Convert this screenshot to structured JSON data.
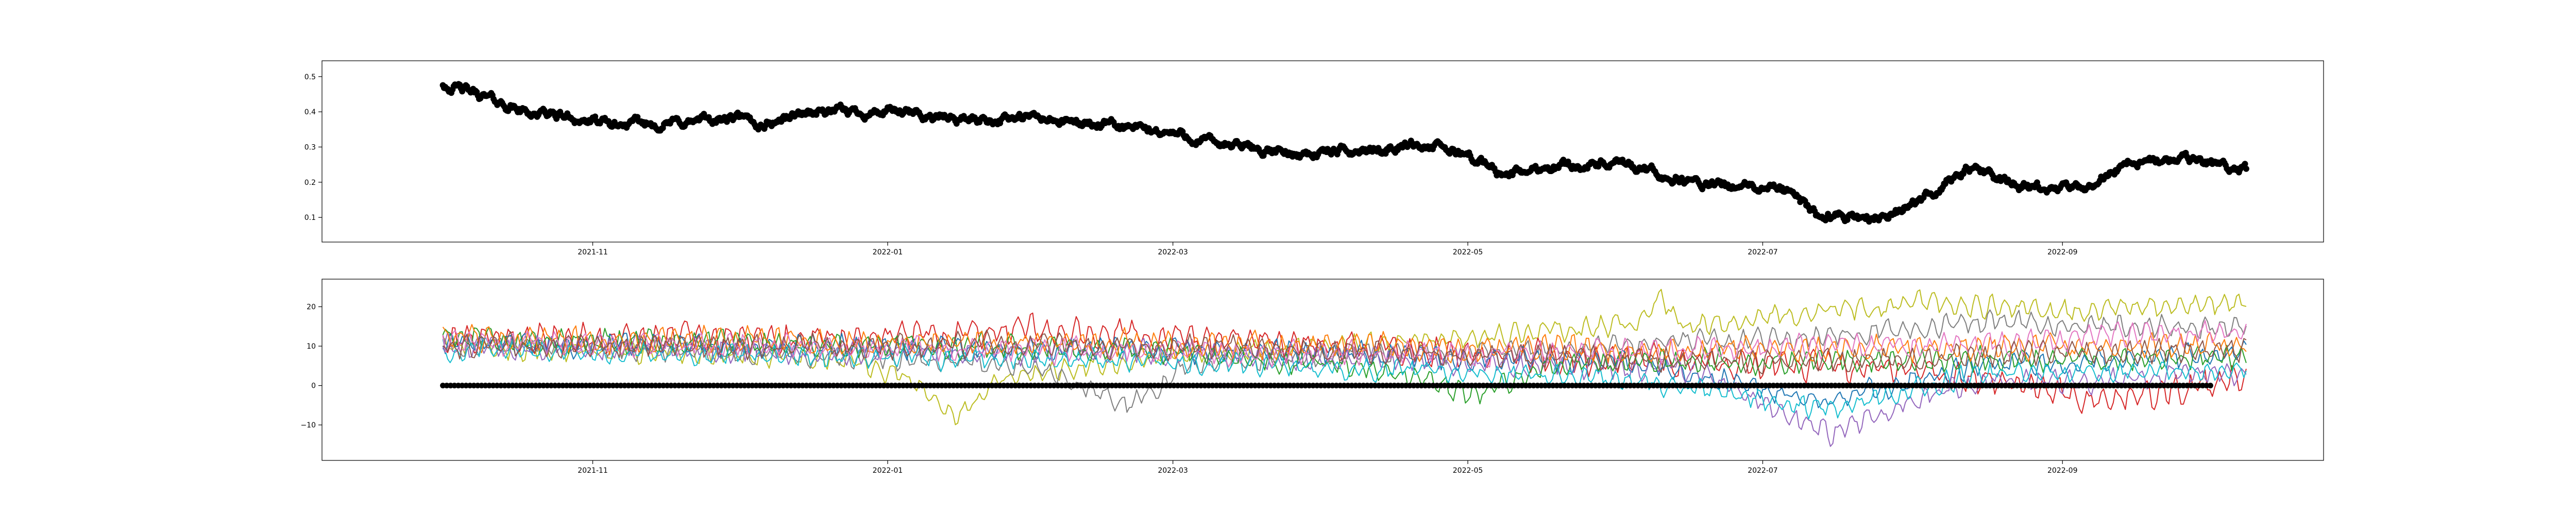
{
  "chart_data": [
    {
      "type": "scatter",
      "title": "",
      "xlabel": "",
      "ylabel": "",
      "grid": false,
      "xlim": [
        "2021-09-06",
        "2022-10-25"
      ],
      "ylim": [
        0.03,
        0.545
      ],
      "xticks": [
        {
          "date": "2021-11-01",
          "label": "2021-11"
        },
        {
          "date": "2022-01-01",
          "label": "2022-01"
        },
        {
          "date": "2022-03-01",
          "label": "2022-03"
        },
        {
          "date": "2022-05-01",
          "label": "2022-05"
        },
        {
          "date": "2022-07-01",
          "label": "2022-07"
        },
        {
          "date": "2022-09-01",
          "label": "2022-09"
        }
      ],
      "yticks": [
        {
          "value": 0.1,
          "label": "0.1"
        },
        {
          "value": 0.2,
          "label": "0.2"
        },
        {
          "value": 0.3,
          "label": "0.3"
        },
        {
          "value": 0.4,
          "label": "0.4"
        },
        {
          "value": 0.5,
          "label": "0.5"
        }
      ],
      "series": [
        {
          "color": "#000000",
          "date_range": [
            "2021-10-01",
            "2022-10-09"
          ],
          "noise": 0.018,
          "trend": [
            [
              "2021-10-01",
              0.48
            ],
            [
              "2021-10-08",
              0.45
            ],
            [
              "2021-10-18",
              0.4
            ],
            [
              "2021-10-25",
              0.39
            ],
            [
              "2021-11-05",
              0.36
            ],
            [
              "2021-11-20",
              0.37
            ],
            [
              "2021-12-01",
              0.38
            ],
            [
              "2021-12-05",
              0.36
            ],
            [
              "2021-12-15",
              0.4
            ],
            [
              "2022-01-01",
              0.4
            ],
            [
              "2022-01-15",
              0.38
            ],
            [
              "2022-02-01",
              0.38
            ],
            [
              "2022-02-15",
              0.36
            ],
            [
              "2022-03-01",
              0.34
            ],
            [
              "2022-03-10",
              0.31
            ],
            [
              "2022-03-25",
              0.28
            ],
            [
              "2022-04-10",
              0.29
            ],
            [
              "2022-04-20",
              0.31
            ],
            [
              "2022-05-01",
              0.28
            ],
            [
              "2022-05-08",
              0.22
            ],
            [
              "2022-05-20",
              0.25
            ],
            [
              "2022-06-01",
              0.25
            ],
            [
              "2022-06-10",
              0.22
            ],
            [
              "2022-06-20",
              0.19
            ],
            [
              "2022-07-05",
              0.18
            ],
            [
              "2022-07-12",
              0.11
            ],
            [
              "2022-07-25",
              0.1
            ],
            [
              "2022-08-02",
              0.14
            ],
            [
              "2022-08-12",
              0.24
            ],
            [
              "2022-08-25",
              0.18
            ],
            [
              "2022-09-05",
              0.18
            ],
            [
              "2022-09-15",
              0.26
            ],
            [
              "2022-10-01",
              0.26
            ],
            [
              "2022-10-09",
              0.23
            ]
          ]
        }
      ]
    },
    {
      "type": "line",
      "title": "",
      "xlabel": "",
      "ylabel": "",
      "grid": false,
      "xlim": [
        "2021-09-06",
        "2022-10-25"
      ],
      "ylim": [
        -19,
        27
      ],
      "xticks": [
        {
          "date": "2021-11-01",
          "label": "2021-11"
        },
        {
          "date": "2022-01-01",
          "label": "2022-01"
        },
        {
          "date": "2022-03-01",
          "label": "2022-03"
        },
        {
          "date": "2022-05-01",
          "label": "2022-05"
        },
        {
          "date": "2022-07-01",
          "label": "2022-07"
        },
        {
          "date": "2022-09-01",
          "label": "2022-09"
        }
      ],
      "yticks": [
        {
          "value": -10,
          "label": "−10"
        },
        {
          "value": 0,
          "label": "0"
        },
        {
          "value": 10,
          "label": "10"
        },
        {
          "value": 20,
          "label": "20"
        }
      ],
      "series": [
        {
          "color": "#bcbd22",
          "date_range": [
            "2021-10-01",
            "2022-10-09"
          ],
          "noise": 2.2,
          "trend": [
            [
              "2021-10-01",
              10
            ],
            [
              "2021-12-20",
              7
            ],
            [
              "2022-01-05",
              2
            ],
            [
              "2022-01-15",
              -8
            ],
            [
              "2022-01-25",
              2
            ],
            [
              "2022-03-01",
              8
            ],
            [
              "2022-05-01",
              12
            ],
            [
              "2022-06-05",
              16
            ],
            [
              "2022-06-10",
              22
            ],
            [
              "2022-06-15",
              15
            ],
            [
              "2022-07-05",
              18
            ],
            [
              "2022-08-05",
              21
            ],
            [
              "2022-09-01",
              19
            ],
            [
              "2022-10-09",
              21
            ]
          ]
        },
        {
          "color": "#7f7f7f",
          "date_range": [
            "2021-10-01",
            "2022-10-09"
          ],
          "noise": 2.2,
          "trend": [
            [
              "2021-10-01",
              11
            ],
            [
              "2022-02-01",
              5
            ],
            [
              "2022-02-20",
              -5
            ],
            [
              "2022-03-05",
              6
            ],
            [
              "2022-06-01",
              10
            ],
            [
              "2022-07-10",
              12
            ],
            [
              "2022-08-15",
              16
            ],
            [
              "2022-10-09",
              15
            ]
          ]
        },
        {
          "color": "#d62728",
          "date_range": [
            "2021-10-01",
            "2022-10-09"
          ],
          "noise": 3.0,
          "trend": [
            [
              "2021-10-01",
              12
            ],
            [
              "2022-01-01",
              12
            ],
            [
              "2022-02-01",
              14
            ],
            [
              "2022-05-01",
              8
            ],
            [
              "2022-08-01",
              4
            ],
            [
              "2022-09-10",
              -4
            ],
            [
              "2022-10-09",
              2
            ]
          ]
        },
        {
          "color": "#1f77b4",
          "date_range": [
            "2021-10-01",
            "2022-10-09"
          ],
          "noise": 2.4,
          "trend": [
            [
              "2021-10-01",
              11
            ],
            [
              "2022-03-01",
              9
            ],
            [
              "2022-06-01",
              6
            ],
            [
              "2022-07-15",
              -4
            ],
            [
              "2022-08-15",
              5
            ],
            [
              "2022-10-09",
              8
            ]
          ]
        },
        {
          "color": "#9467bd",
          "date_range": [
            "2021-10-01",
            "2022-10-09"
          ],
          "noise": 2.4,
          "trend": [
            [
              "2021-10-01",
              10
            ],
            [
              "2022-03-01",
              8
            ],
            [
              "2022-06-15",
              4
            ],
            [
              "2022-07-15",
              -12
            ],
            [
              "2022-08-10",
              0
            ],
            [
              "2022-10-09",
              3
            ]
          ]
        },
        {
          "color": "#2ca02c",
          "date_range": [
            "2021-10-01",
            "2022-10-09"
          ],
          "noise": 2.4,
          "trend": [
            [
              "2021-10-01",
              12
            ],
            [
              "2022-03-01",
              9
            ],
            [
              "2022-04-20",
              3
            ],
            [
              "2022-05-01",
              -3
            ],
            [
              "2022-05-20",
              6
            ],
            [
              "2022-10-09",
              7
            ]
          ]
        },
        {
          "color": "#ff7f0e",
          "date_range": [
            "2021-10-01",
            "2022-10-09"
          ],
          "noise": 2.6,
          "trend": [
            [
              "2021-10-01",
              12
            ],
            [
              "2022-02-01",
              11
            ],
            [
              "2022-06-01",
              9
            ],
            [
              "2022-10-09",
              10
            ]
          ]
        },
        {
          "color": "#17becf",
          "date_range": [
            "2021-10-01",
            "2022-10-09"
          ],
          "noise": 2.2,
          "trend": [
            [
              "2021-10-01",
              9
            ],
            [
              "2022-03-01",
              6
            ],
            [
              "2022-06-01",
              2
            ],
            [
              "2022-07-15",
              -6
            ],
            [
              "2022-08-15",
              3
            ],
            [
              "2022-10-09",
              4
            ]
          ]
        },
        {
          "color": "#e377c2",
          "date_range": [
            "2021-10-01",
            "2022-10-09"
          ],
          "noise": 2.4,
          "trend": [
            [
              "2021-10-01",
              11
            ],
            [
              "2022-04-01",
              8
            ],
            [
              "2022-08-01",
              10
            ],
            [
              "2022-10-09",
              14
            ]
          ]
        },
        {
          "color": "#8c564b",
          "date_range": [
            "2021-10-01",
            "2022-10-09"
          ],
          "noise": 2.4,
          "trend": [
            [
              "2021-10-01",
              10
            ],
            [
              "2022-03-01",
              10
            ],
            [
              "2022-07-01",
              6
            ],
            [
              "2022-10-09",
              9
            ]
          ]
        }
      ],
      "baseline_markers": {
        "color": "#000000",
        "date_range": [
          "2021-10-01",
          "2022-10-02"
        ],
        "value": 0
      }
    }
  ]
}
